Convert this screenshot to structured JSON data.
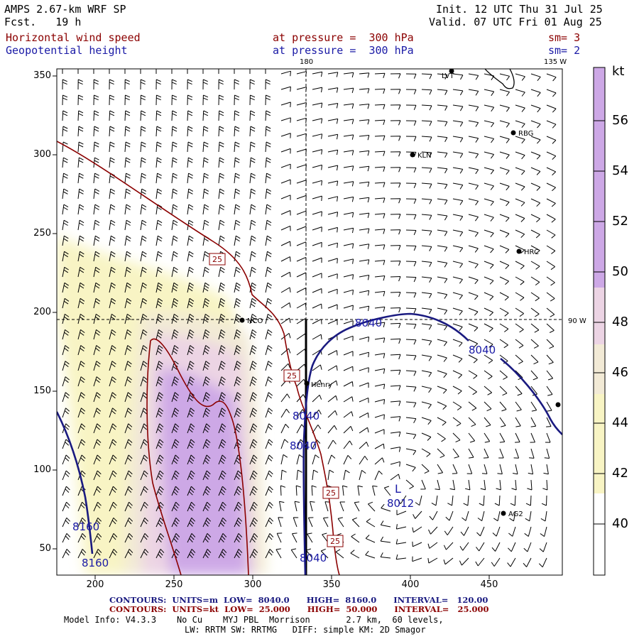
{
  "header": {
    "model": "AMPS 2.67-km WRF SP",
    "fcst": "Fcst.   19 h",
    "init": "Init. 12 UTC Thu 31 Jul 25",
    "valid": "Valid. 07 UTC Fri 01 Aug 25",
    "field1": "Horizontal wind speed",
    "field2": "Geopotential height",
    "pressure1": "at pressure =  300 hPa",
    "pressure2": "at pressure =  300 hPa",
    "sm1": "sm= 3",
    "sm2": "sm= 2"
  },
  "map": {
    "lon_top_180": "180",
    "lon_top_135w": "135 W",
    "lon_right_90w": "90 W",
    "stations": [
      {
        "name": "RBG"
      },
      {
        "name": "KLN"
      },
      {
        "name": "HRC"
      },
      {
        "name": "NCO"
      },
      {
        "name": "Henry"
      },
      {
        "name": "AG2"
      },
      {
        "name": "LVT"
      }
    ],
    "low_marker": "L",
    "low_value": "8012",
    "height_labels": [
      "8040",
      "8040",
      "8040",
      "8040",
      "8040",
      "8160",
      "8160"
    ],
    "speed_labels": [
      "25",
      "25",
      "25",
      "25"
    ]
  },
  "axes": {
    "y_ticks": [
      "350",
      "300",
      "250",
      "200",
      "150",
      "100",
      "50"
    ],
    "x_ticks": [
      "200",
      "250",
      "300",
      "350",
      "400",
      "450"
    ]
  },
  "colorbar": {
    "unit": "kt",
    "levels": [
      "56",
      "54",
      "52",
      "50",
      "48",
      "46",
      "44",
      "42",
      "40"
    ],
    "colors": {
      "purple": "#cda8e6",
      "pink": "#ecd4e4",
      "beige": "#f2ead6",
      "yellow": "#f8f4c4"
    }
  },
  "footer": {
    "line1_blue": "CONTOURS:  UNITS=m  LOW=  8040.0      HIGH=  8160.0      INTERVAL=   120.00",
    "line2_red": "CONTOURS:  UNITS=kt  LOW=  25.000      HIGH=  50.000      INTERVAL=   25.000",
    "line3": "Model Info: V4.3.3    No Cu    MYJ PBL  Morrison       2.7 km,  60 levels,",
    "line4": "LW: RRTM SW: RRTMG   DIFF: simple KM: 2D Smagor"
  }
}
